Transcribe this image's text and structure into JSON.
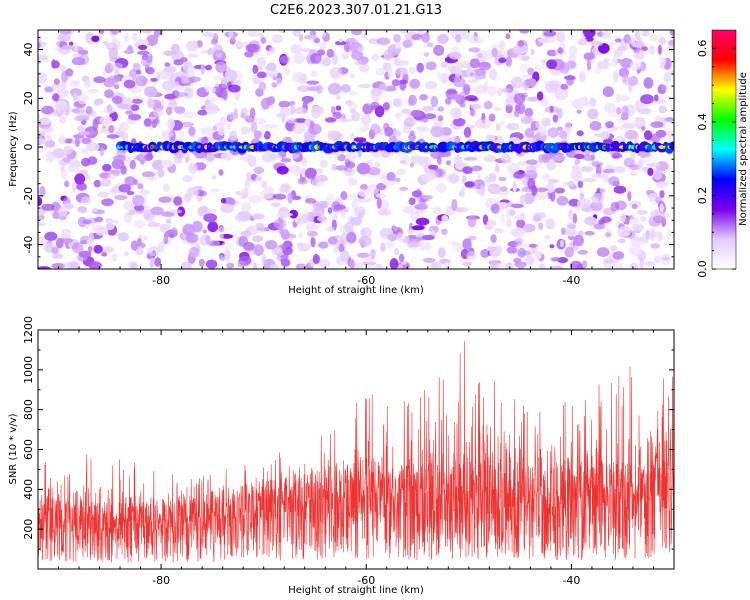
{
  "title": "C2E6.2023.307.01.21.G13",
  "chart_data": [
    {
      "type": "heatmap",
      "xlabel": "Height of straight line (km)",
      "ylabel": "Frequency (Hz)",
      "xlim": [
        -92,
        -30
      ],
      "ylim": [
        -50,
        48
      ],
      "x_ticks": [
        -80,
        -60,
        -40
      ],
      "y_ticks": [
        -40,
        -20,
        0,
        20,
        40
      ],
      "colorbar": {
        "label": "Normalized spectral amplitude",
        "range": [
          0,
          0.65
        ],
        "ticks": [
          "0.0",
          "0.2",
          "0.4",
          "0.6"
        ],
        "colormap": [
          "#ffffff",
          "#e3ccff",
          "#7a00e8",
          "#0000ff",
          "#00ffff",
          "#00ff00",
          "#ffff00",
          "#ff0000",
          "#ff0066"
        ]
      },
      "signal_band": {
        "frequency_hz": 0,
        "x_start": -84,
        "x_end": -30,
        "peak_amplitude": 0.65
      },
      "grid": false
    },
    {
      "type": "line",
      "xlabel": "Height of straight line (km)",
      "ylabel": "SNR (10 * v/v)",
      "xlim": [
        -92,
        -30
      ],
      "ylim": [
        0,
        1200
      ],
      "x_ticks": [
        -80,
        -60,
        -40
      ],
      "y_ticks": [
        200,
        400,
        600,
        800,
        1000,
        1200
      ],
      "color": "#ee3333",
      "envelope": {
        "x": [
          -92,
          -85,
          -80,
          -75,
          -70,
          -65,
          -60,
          -55,
          -50,
          -45,
          -40,
          -35,
          -31,
          -30
        ],
        "baseline": [
          200,
          190,
          200,
          230,
          260,
          290,
          320,
          300,
          320,
          310,
          300,
          310,
          340,
          350
        ],
        "peak": [
          560,
          600,
          480,
          500,
          560,
          700,
          920,
          860,
          1200,
          900,
          850,
          1000,
          1130,
          1150
        ]
      },
      "grid": false
    }
  ]
}
